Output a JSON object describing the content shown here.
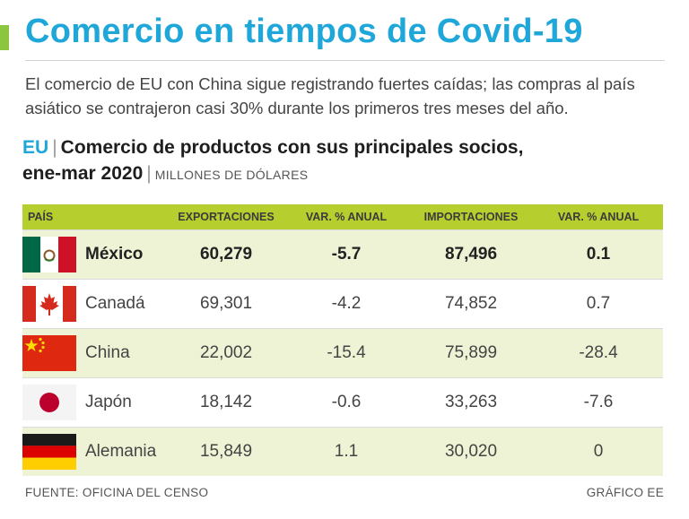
{
  "header": {
    "title": "Comercio en tiempos de Covid-19",
    "subtitle": "El comercio de EU con China sigue registrando fuertes caídas; las compras al país asiático se contrajeron casi 30% durante los primeros tres meses del año."
  },
  "chart_data": {
    "type": "table",
    "region": "EU",
    "title_line1": "Comercio de productos con sus principales socios,",
    "title_line2": "ene-mar 2020",
    "units": "MILLONES DE DÓLARES",
    "columns": [
      "PAÍS",
      "EXPORTACIONES",
      "VAR. % ANUAL",
      "IMPORTACIONES",
      "VAR. % ANUAL"
    ],
    "rows": [
      {
        "country": "México",
        "flag": "mexico-flag-icon",
        "exports": "60,279",
        "exports_var": "-5.7",
        "imports": "87,496",
        "imports_var": "0.1"
      },
      {
        "country": "Canadá",
        "flag": "canada-flag-icon",
        "exports": "69,301",
        "exports_var": "-4.2",
        "imports": "74,852",
        "imports_var": "0.7"
      },
      {
        "country": "China",
        "flag": "china-flag-icon",
        "exports": "22,002",
        "exports_var": "-15.4",
        "imports": "75,899",
        "imports_var": "-28.4"
      },
      {
        "country": "Japón",
        "flag": "japan-flag-icon",
        "exports": "18,142",
        "exports_var": "-0.6",
        "imports": "33,263",
        "imports_var": "-7.6"
      },
      {
        "country": "Alemania",
        "flag": "germany-flag-icon",
        "exports": "15,849",
        "exports_var": "1.1",
        "imports": "30,020",
        "imports_var": "0"
      }
    ]
  },
  "footer": {
    "source": "FUENTE: OFICINA DEL CENSO",
    "credit": "GRÁFICO EE"
  },
  "colors": {
    "title_blue": "#1fa7d9",
    "accent_green": "#8cc63f",
    "header_green": "#b7cf2e",
    "row_shade": "#edf3d4"
  }
}
